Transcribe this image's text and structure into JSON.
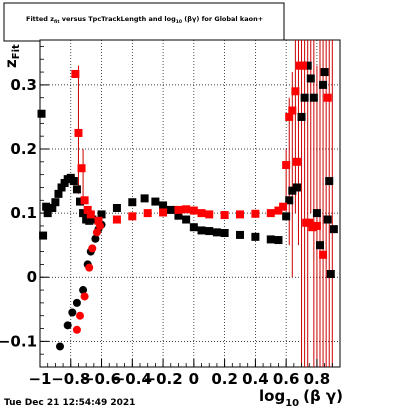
{
  "title": {
    "pre": "Fitted  z",
    "sub1": "fit",
    "mid": "  versus TpcTrackLength and log",
    "sub2": "10",
    "post": " (βγ) for Global kaon+"
  },
  "timestamp": "Tue Dec 21 12:54:49 2021",
  "y_axis_title": {
    "main": "z",
    "sub": "Fit"
  },
  "x_axis_title": {
    "main": "log",
    "sub": "10",
    "post": "(β γ)"
  },
  "x_ticks": [
    {
      "value": -1,
      "label": "−1"
    },
    {
      "value": -0.8,
      "label": "−0.8"
    },
    {
      "value": -0.6,
      "label": "−0.6"
    },
    {
      "value": -0.4,
      "label": "−0.4"
    },
    {
      "value": -0.2,
      "label": "−0.2"
    },
    {
      "value": 0,
      "label": "0"
    },
    {
      "value": 0.2,
      "label": "0.2"
    },
    {
      "value": 0.4,
      "label": "0.4"
    },
    {
      "value": 0.6,
      "label": "0.6"
    },
    {
      "value": 0.8,
      "label": "0.8"
    }
  ],
  "y_ticks": [
    {
      "value": -0.1,
      "label": "−0.1"
    },
    {
      "value": 0,
      "label": "0"
    },
    {
      "value": 0.1,
      "label": "0.1"
    },
    {
      "value": 0.2,
      "label": "0.2"
    },
    {
      "value": 0.3,
      "label": "0.3"
    }
  ],
  "chart_data": {
    "type": "scatter",
    "xlim": [
      -1.0,
      0.95
    ],
    "ylim": [
      -0.14,
      0.37
    ],
    "grid": true,
    "colors": {
      "black_series": "#000000",
      "red_series": "#ff0000",
      "error_bar": "#cc0000"
    },
    "series": [
      {
        "marker": "square",
        "color": "#000000",
        "points": [
          [
            -0.99,
            0.255
          ],
          [
            -0.98,
            0.065
          ],
          [
            -0.96,
            0.11
          ],
          [
            -0.95,
            0.1
          ],
          [
            -0.92,
            0.108
          ],
          [
            -0.9,
            0.117
          ],
          [
            -0.88,
            0.13
          ],
          [
            -0.86,
            0.14
          ],
          [
            -0.84,
            0.147
          ],
          [
            -0.82,
            0.153
          ],
          [
            -0.8,
            0.155
          ],
          [
            -0.78,
            0.15
          ],
          [
            -0.76,
            0.137
          ],
          [
            -0.74,
            0.118
          ],
          [
            -0.72,
            0.1
          ],
          [
            -0.7,
            0.09
          ],
          [
            -0.68,
            0.088
          ],
          [
            -0.66,
            0.09
          ],
          [
            -0.6,
            0.098
          ],
          [
            -0.5,
            0.108
          ],
          [
            -0.4,
            0.117
          ],
          [
            -0.32,
            0.123
          ],
          [
            -0.25,
            0.118
          ],
          [
            -0.2,
            0.112
          ],
          [
            -0.15,
            0.105
          ],
          [
            -0.1,
            0.096
          ],
          [
            -0.05,
            0.09
          ],
          [
            0.0,
            0.078
          ],
          [
            0.05,
            0.073
          ],
          [
            0.1,
            0.072
          ],
          [
            0.15,
            0.07
          ],
          [
            0.2,
            0.069
          ],
          [
            0.3,
            0.066
          ],
          [
            0.4,
            0.063
          ],
          [
            0.5,
            0.059
          ],
          [
            0.55,
            0.058
          ],
          [
            0.6,
            0.095
          ],
          [
            0.62,
            0.12
          ],
          [
            0.64,
            0.135
          ],
          [
            0.67,
            0.14
          ],
          [
            0.7,
            0.25
          ],
          [
            0.72,
            0.28
          ],
          [
            0.74,
            0.33
          ],
          [
            0.76,
            0.31
          ],
          [
            0.78,
            0.28
          ],
          [
            0.8,
            0.1
          ],
          [
            0.82,
            0.05
          ],
          [
            0.84,
            0.3
          ],
          [
            0.85,
            0.32
          ],
          [
            0.87,
            0.09
          ],
          [
            0.88,
            0.15
          ],
          [
            0.89,
            0.005
          ],
          [
            0.91,
            0.075
          ]
        ]
      },
      {
        "marker": "circle",
        "color": "#000000",
        "points": [
          [
            -0.87,
            -0.108
          ],
          [
            -0.82,
            -0.075
          ],
          [
            -0.79,
            -0.055
          ],
          [
            -0.76,
            -0.04
          ],
          [
            -0.72,
            -0.02
          ],
          [
            -0.69,
            0.02
          ],
          [
            -0.67,
            0.04
          ],
          [
            -0.64,
            0.06
          ],
          [
            -0.62,
            0.075
          ],
          [
            -0.6,
            0.082
          ]
        ]
      },
      {
        "marker": "square",
        "color": "#ff0000",
        "points": [
          [
            -0.77,
            0.317
          ],
          [
            -0.75,
            0.225
          ],
          [
            -0.73,
            0.17
          ],
          [
            -0.71,
            0.12
          ],
          [
            -0.69,
            0.105
          ],
          [
            -0.67,
            0.098
          ],
          [
            -0.62,
            0.088
          ],
          [
            -0.5,
            0.09
          ],
          [
            -0.4,
            0.095
          ],
          [
            -0.3,
            0.1
          ],
          [
            -0.2,
            0.101
          ],
          [
            -0.1,
            0.105
          ],
          [
            -0.05,
            0.106
          ],
          [
            0.0,
            0.104
          ],
          [
            0.05,
            0.1
          ],
          [
            0.1,
            0.098
          ],
          [
            0.2,
            0.097
          ],
          [
            0.3,
            0.098
          ],
          [
            0.4,
            0.099
          ],
          [
            0.5,
            0.1
          ],
          [
            0.55,
            0.104
          ],
          [
            0.58,
            0.11
          ],
          [
            0.6,
            0.175
          ],
          [
            0.62,
            0.25
          ],
          [
            0.64,
            0.26
          ],
          [
            0.66,
            0.29
          ],
          [
            0.67,
            0.18
          ],
          [
            0.69,
            0.33
          ],
          [
            0.71,
            0.33
          ],
          [
            0.73,
            0.085
          ],
          [
            0.75,
            0.085
          ],
          [
            0.77,
            0.078
          ],
          [
            0.8,
            0.08
          ],
          [
            0.84,
            0.035
          ],
          [
            0.87,
            0.28
          ]
        ]
      },
      {
        "marker": "circle",
        "color": "#ff0000",
        "points": [
          [
            -0.76,
            -0.082
          ],
          [
            -0.74,
            -0.06
          ],
          [
            -0.71,
            -0.03
          ],
          [
            -0.68,
            0.015
          ],
          [
            -0.66,
            0.045
          ],
          [
            -0.63,
            0.07
          ],
          [
            -0.61,
            0.08
          ]
        ]
      }
    ],
    "error_bars": [
      [
        -0.75,
        0.13,
        0.33
      ],
      [
        -0.72,
        0.12,
        0.2
      ],
      [
        0.6,
        0.12,
        0.2
      ],
      [
        0.62,
        0.05,
        0.28
      ],
      [
        0.64,
        0.0,
        0.32
      ],
      [
        0.66,
        0.1,
        0.37
      ],
      [
        0.68,
        0.05,
        0.37
      ],
      [
        0.7,
        -0.14,
        0.37
      ],
      [
        0.72,
        -0.14,
        0.37
      ],
      [
        0.74,
        -0.14,
        0.37
      ],
      [
        0.76,
        0.1,
        0.37
      ],
      [
        0.78,
        -0.14,
        0.37
      ],
      [
        0.8,
        -0.14,
        0.33
      ],
      [
        0.82,
        -0.14,
        0.37
      ],
      [
        0.84,
        -0.14,
        0.37
      ],
      [
        0.86,
        -0.14,
        0.37
      ],
      [
        0.88,
        -0.14,
        0.37
      ],
      [
        0.9,
        -0.14,
        0.37
      ]
    ]
  }
}
